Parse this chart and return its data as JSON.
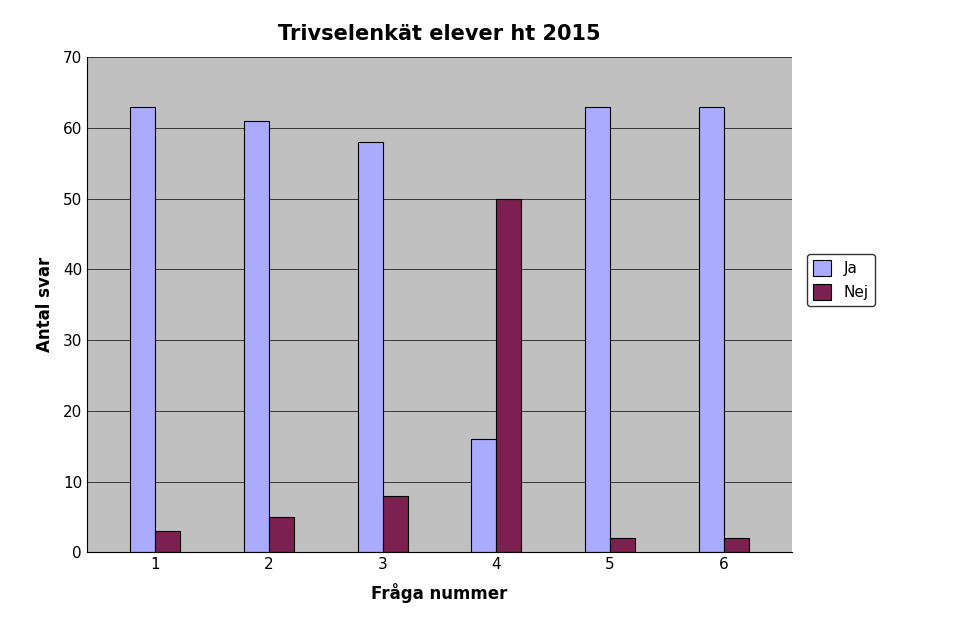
{
  "title": "Trivselenkät elever ht 2015",
  "xlabel": "Fråga nummer",
  "ylabel": "Antal svar",
  "categories": [
    1,
    2,
    3,
    4,
    5,
    6
  ],
  "ja_values": [
    63,
    61,
    58,
    16,
    63,
    63
  ],
  "nej_values": [
    3,
    5,
    8,
    50,
    2,
    2
  ],
  "ja_color": "#aaaaff",
  "nej_color": "#7b2050",
  "bar_width": 0.22,
  "ylim": [
    0,
    70
  ],
  "yticks": [
    0,
    10,
    20,
    30,
    40,
    50,
    60,
    70
  ],
  "plot_bg_color": "#c0c0c0",
  "fig_bg_color": "#ffffff",
  "legend_labels": [
    "Ja",
    "Nej"
  ],
  "title_fontsize": 15,
  "axis_label_fontsize": 12,
  "tick_fontsize": 11,
  "legend_fontsize": 11
}
